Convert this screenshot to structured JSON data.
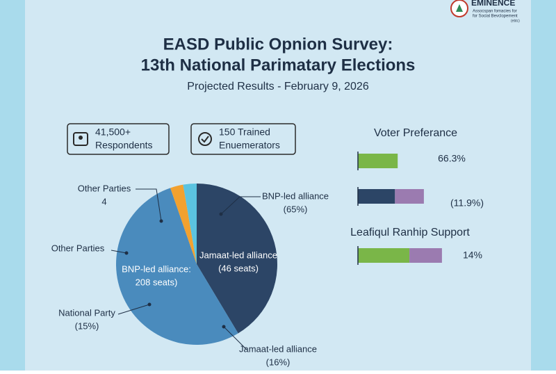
{
  "header": {
    "title_lines": [
      "EASD Public Opnion Survey:",
      "13th National Parimatary Elections"
    ],
    "subtitle": "Projected Results - February 9, 2026"
  },
  "logo": {
    "name": "EMINENCE",
    "tagline_lines": [
      "Assocspan fomacies for",
      "for Social Bevclopement",
      "(ebtc)"
    ]
  },
  "stats": [
    {
      "lines": [
        "41,500+",
        "Respondents"
      ]
    },
    {
      "lines": [
        "150 Trained",
        "Enuemerators"
      ]
    }
  ],
  "chart_data": [
    {
      "type": "pie",
      "values": [
        41.4,
        53.3,
        2.6,
        2.7
      ],
      "colors": [
        "#2c4566",
        "#4a8bbd",
        "#f2a12f",
        "#5bc3e0"
      ],
      "annotations": [
        {
          "lines": [
            "Other Parties",
            "4"
          ]
        },
        {
          "lines": [
            "Other Parties"
          ]
        },
        {
          "lines": [
            "BNP-led alliance:",
            "208 seats)"
          ]
        },
        {
          "lines": [
            "National Party",
            "(15%)"
          ]
        },
        {
          "lines": [
            "BNP-led alliance",
            "(65%)"
          ]
        },
        {
          "lines": [
            "Jamaat-led alliance",
            "(46 seats)"
          ]
        },
        {
          "lines": [
            "Jamaat-led alliance",
            "(16%)"
          ]
        }
      ]
    },
    {
      "type": "bar",
      "title": "Voter Preferance",
      "subtitle": "Leafiqul Ranhip Support",
      "xlim": [
        0,
        100
      ],
      "series": [
        {
          "color": "#7ab648",
          "values": [
            44,
            null,
            57
          ]
        },
        {
          "color": "#2c4566",
          "values": [
            null,
            41,
            null
          ]
        },
        {
          "color": "#9b7bb0",
          "values": [
            null,
            32,
            36
          ]
        }
      ],
      "labels": [
        "66.3%",
        "(11.9%)",
        "14%"
      ]
    }
  ]
}
